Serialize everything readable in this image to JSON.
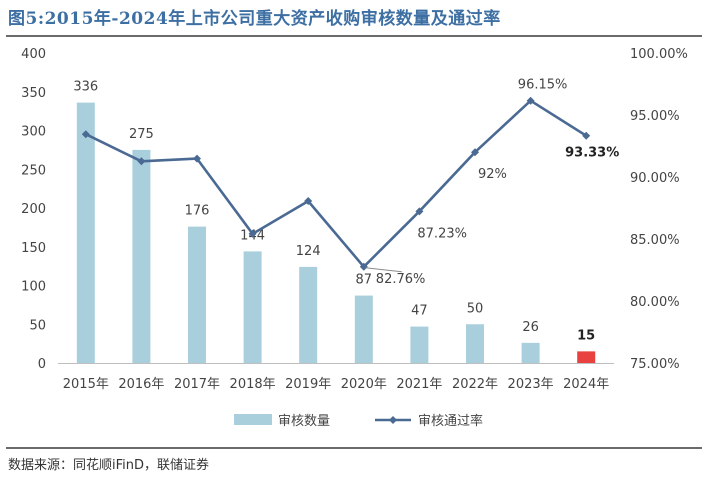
{
  "figure_title": "图5:2015年-2024年上市公司重大资产收购审核数量及通过率",
  "source_note": "数据来源：同花顺iFinD，联储证券",
  "chart_data": {
    "type": "bar",
    "title": "图5:2015年-2024年上市公司重大资产收购审核数量及通过率",
    "categories": [
      "2015年",
      "2016年",
      "2017年",
      "2018年",
      "2019年",
      "2020年",
      "2021年",
      "2022年",
      "2023年",
      "2024年"
    ],
    "y_left": {
      "min": 0,
      "max": 400,
      "step": 50,
      "ticks": [
        "0",
        "50",
        "100",
        "150",
        "200",
        "250",
        "300",
        "350",
        "400"
      ]
    },
    "y_right": {
      "min": 75,
      "max": 100,
      "step": 5,
      "ticks": [
        "75.00%",
        "80.00%",
        "85.00%",
        "90.00%",
        "95.00%",
        "100.00%"
      ]
    },
    "legend_position": "bottom",
    "grid": false,
    "series": [
      {
        "name": "审核数量",
        "type": "bar",
        "axis": "left",
        "color": "#a9cfdc",
        "highlight_color": "#e8413f",
        "values": [
          336,
          275,
          176,
          144,
          124,
          87,
          47,
          50,
          26,
          15
        ],
        "labels": [
          "336",
          "275",
          "176",
          "144",
          "124",
          "87",
          "47",
          "50",
          "26",
          "15"
        ]
      },
      {
        "name": "审核通过率",
        "type": "line",
        "axis": "right",
        "color": "#4a6a94",
        "values": [
          93.45,
          91.27,
          91.48,
          85.42,
          88.06,
          82.76,
          87.23,
          92.0,
          96.15,
          93.33
        ],
        "labels": [
          {
            "index": 5,
            "text": "82.76%"
          },
          {
            "index": 6,
            "text": "87.23%"
          },
          {
            "index": 7,
            "text": "92%"
          },
          {
            "index": 8,
            "text": "96.15%"
          },
          {
            "index": 9,
            "text": "93.33%"
          }
        ]
      }
    ]
  }
}
